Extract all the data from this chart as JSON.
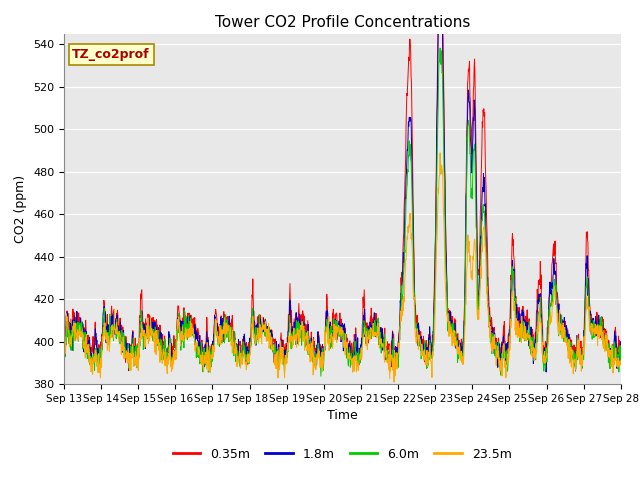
{
  "title": "Tower CO2 Profile Concentrations",
  "xlabel": "Time",
  "ylabel": "CO2 (ppm)",
  "ylim": [
    380,
    545
  ],
  "yticks": [
    380,
    400,
    420,
    440,
    460,
    480,
    500,
    520,
    540
  ],
  "series_labels": [
    "0.35m",
    "1.8m",
    "6.0m",
    "23.5m"
  ],
  "series_colors": [
    "#ff0000",
    "#0000cc",
    "#00cc00",
    "#ffaa00"
  ],
  "annotation_text": "TZ_co2prof",
  "annotation_color": "#aa0000",
  "annotation_bg": "#ffffcc",
  "annotation_border": "#aa8800",
  "background_color": "#e8e8e8",
  "x_tick_labels": [
    "Sep 13",
    "Sep 14",
    "Sep 15",
    "Sep 16",
    "Sep 17",
    "Sep 18",
    "Sep 19",
    "Sep 20",
    "Sep 21",
    "Sep 22",
    "Sep 23",
    "Sep 24",
    "Sep 25",
    "Sep 26",
    "Sep 27",
    "Sep 28"
  ],
  "base_value": 400,
  "line_width": 0.7
}
